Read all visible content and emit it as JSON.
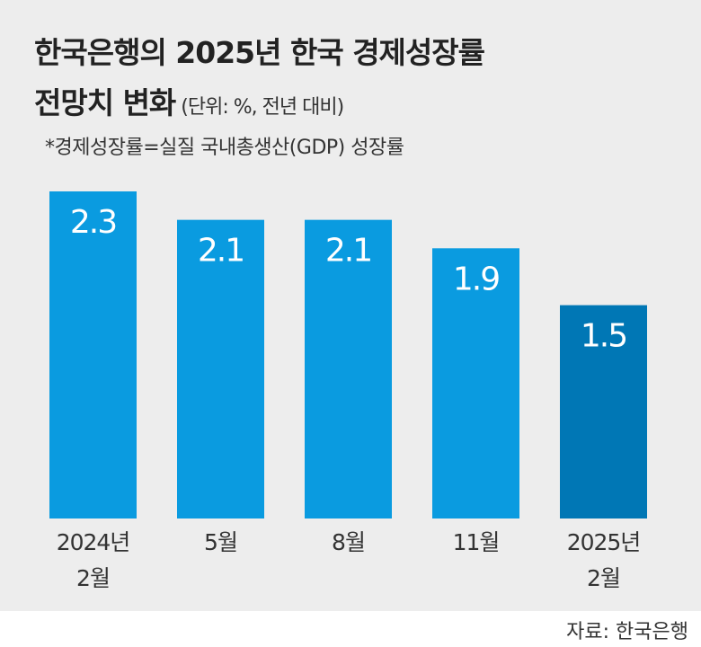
{
  "title_line1": "한국은행의 2025년 한국 경제성장률",
  "title_line2": "전망치 변화",
  "unit": "(단위: %, 전년 대비)",
  "note": "*경제성장률=실질 국내총생산(GDP) 성장률",
  "source": "자료: 한국은행",
  "colors": {
    "bar": "#0a9be0",
    "highlight": "#0077b5",
    "label": "#ffffff",
    "axis_text": "#333333"
  },
  "chart_data": {
    "type": "bar",
    "title": "한국은행의 2025년 한국 경제성장률 전망치 변화",
    "ylabel": "%",
    "categories": [
      [
        "2024년",
        "2월"
      ],
      [
        "5월"
      ],
      [
        "8월"
      ],
      [
        "11월"
      ],
      [
        "2025년",
        "2월"
      ]
    ],
    "values": [
      2.3,
      2.1,
      2.1,
      1.9,
      1.5
    ],
    "value_labels": [
      "2.3",
      "2.1",
      "2.1",
      "1.9",
      "1.5"
    ],
    "highlight_index": 4,
    "ylim": [
      0,
      2.3
    ],
    "grid": false
  }
}
